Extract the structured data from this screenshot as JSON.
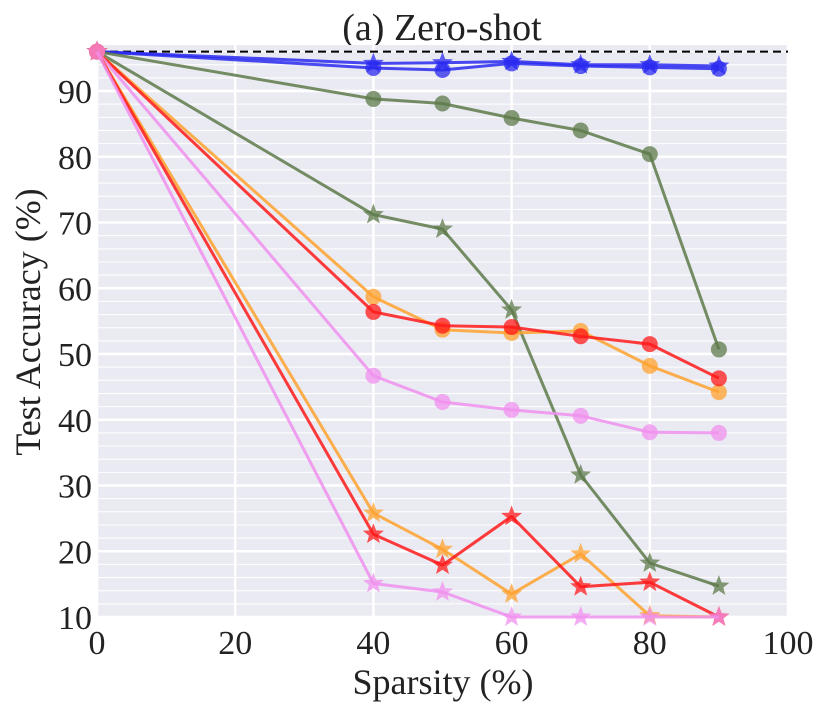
{
  "chart_data": {
    "type": "line",
    "title": "(a) Zero-shot",
    "xlabel": "Sparsity (%)",
    "ylabel": "Test Accuracy (%)",
    "xlim": [
      0,
      100
    ],
    "ylim": [
      10,
      97
    ],
    "xticks": [
      0,
      20,
      40,
      60,
      80,
      100
    ],
    "yticks": [
      10,
      20,
      30,
      40,
      50,
      60,
      70,
      80,
      90
    ],
    "grid": true,
    "reference_line": {
      "y": 96,
      "style": "dashed",
      "color": "#000000"
    },
    "x": [
      0,
      40,
      50,
      60,
      70,
      80,
      90
    ],
    "series": [
      {
        "name": "blue-circle",
        "color": "#2a2af0",
        "marker": "circle",
        "values": [
          96.0,
          93.5,
          93.2,
          94.2,
          93.8,
          93.6,
          93.4
        ]
      },
      {
        "name": "blue-star",
        "color": "#2a2af0",
        "marker": "star",
        "values": [
          96.0,
          94.2,
          94.3,
          94.5,
          94.0,
          94.0,
          93.8
        ]
      },
      {
        "name": "green-circle",
        "color": "#5e7a4a",
        "marker": "circle",
        "values": [
          96.0,
          88.8,
          88.1,
          85.9,
          84.0,
          80.4,
          50.7
        ]
      },
      {
        "name": "green-star",
        "color": "#5e7a4a",
        "marker": "star",
        "values": [
          96.0,
          71.2,
          69.0,
          56.7,
          31.6,
          18.2,
          14.7
        ]
      },
      {
        "name": "orange-circle",
        "color": "#ffa22e",
        "marker": "circle",
        "values": [
          96.0,
          58.7,
          53.7,
          53.2,
          53.5,
          48.2,
          44.2
        ]
      },
      {
        "name": "red-circle",
        "color": "#ff1a1a",
        "marker": "circle",
        "values": [
          96.0,
          56.4,
          54.3,
          54.1,
          52.7,
          51.5,
          46.3
        ]
      },
      {
        "name": "pink-circle",
        "color": "#f090ee",
        "marker": "circle",
        "values": [
          96.0,
          46.7,
          42.7,
          41.5,
          40.6,
          38.1,
          38.0
        ]
      },
      {
        "name": "orange-star",
        "color": "#ffa22e",
        "marker": "star",
        "values": [
          96.0,
          25.8,
          20.3,
          13.5,
          19.6,
          10.2,
          10.0
        ]
      },
      {
        "name": "red-star",
        "color": "#ff1a1a",
        "marker": "star",
        "values": [
          96.0,
          22.6,
          17.9,
          25.3,
          14.6,
          15.3,
          10.0
        ]
      },
      {
        "name": "pink-star",
        "color": "#f090ee",
        "marker": "star",
        "values": [
          96.0,
          15.1,
          13.8,
          10.0,
          10.0,
          10.0,
          10.0
        ]
      }
    ]
  }
}
